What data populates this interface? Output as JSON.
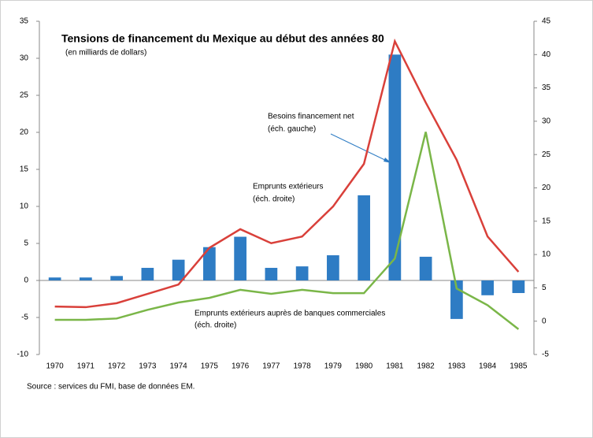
{
  "chart_data": {
    "type": "bar-line",
    "title": "Tensions de financement du Mexique au début des années 80",
    "subtitle": "(en milliards de dollars)",
    "source": "Source : services du FMI, base de données EM.",
    "annotations": [
      "Besoins financement net",
      "(éch. gauche)",
      "Emprunts extérieurs",
      "(éch. droite)",
      "Emprunts extérieurs auprès de banques commerciales",
      "(éch. droite)"
    ],
    "categories": [
      "1970",
      "1971",
      "1972",
      "1973",
      "1974",
      "1975",
      "1976",
      "1977",
      "1978",
      "1979",
      "1980",
      "1981",
      "1982",
      "1983",
      "1984",
      "1985"
    ],
    "series": [
      {
        "name": "Besoins financement net",
        "type": "bar",
        "axis": "y",
        "color": "#2e7cc4",
        "values": [
          0.4,
          0.4,
          0.6,
          1.7,
          2.8,
          4.5,
          5.9,
          1.7,
          1.9,
          3.4,
          11.5,
          30.5,
          3.2,
          -5.2,
          -2.0,
          -1.7
        ]
      },
      {
        "name": "Emprunts extérieurs",
        "type": "line",
        "axis": "y2",
        "color": "#d9403a",
        "values": [
          2.2,
          2.1,
          2.7,
          4.1,
          5.5,
          11,
          13.8,
          11.7,
          12.7,
          17.2,
          23.6,
          42,
          32.8,
          24.2,
          12.7,
          7.4
        ]
      },
      {
        "name": "Emprunts extérieurs auprès de banques commerciales",
        "type": "line",
        "axis": "y2",
        "color": "#7ab648",
        "values": [
          0.2,
          0.2,
          0.4,
          1.7,
          2.8,
          3.5,
          4.7,
          4.1,
          4.7,
          4.2,
          4.2,
          9.4,
          28.4,
          4.9,
          2.4,
          -1.2
        ]
      }
    ],
    "ylim": [
      -10,
      35
    ],
    "yticks": [
      -10,
      -5,
      0,
      5,
      10,
      15,
      20,
      25,
      30,
      35
    ],
    "y2lim": [
      -5,
      45
    ],
    "y2ticks": [
      -5,
      0,
      5,
      10,
      15,
      20,
      25,
      30,
      35,
      40,
      45
    ],
    "grid": false
  }
}
